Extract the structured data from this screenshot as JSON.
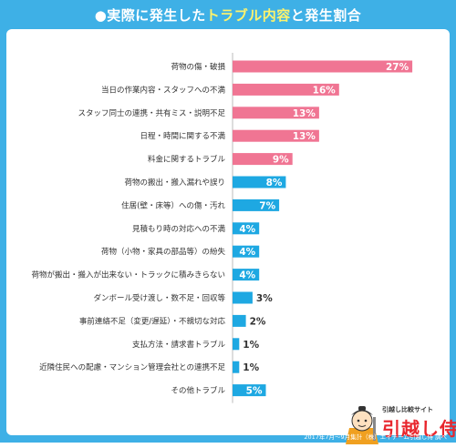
{
  "title": {
    "part1": "●実際に発生した",
    "highlight": "トラブル内容",
    "part2": "と発生割合"
  },
  "footer": "2017年7月～9月集計（株）エイチーム引越し侍 調べ",
  "logo": {
    "subtitle": "引越し比較サイト",
    "name": "引越し侍"
  },
  "colors": {
    "frame": "#3eb0e6",
    "top_bars": "#f07593",
    "other_bars": "#1ea8e2",
    "title_highlight": "#fff36b"
  },
  "chart_data": {
    "type": "bar",
    "orientation": "horizontal",
    "categories": [
      "荷物の傷・破損",
      "当日の作業内容・スタッフへの不満",
      "スタッフ同士の連携・共有ミス・説明不足",
      "日程・時間に関する不満",
      "料金に関するトラブル",
      "荷物の搬出・搬入漏れや誤り",
      "住居(壁・床等）への傷・汚れ",
      "見積もり時の対応への不満",
      "荷物（小物・家具の部品等）の紛失",
      "荷物が搬出・搬入が出来ない・トラックに積みきらない",
      "ダンボール受け渡し・数不足・回収等",
      "事前連絡不足（変更/遅延）・不親切な対応",
      "支払方法・請求書トラブル",
      "近隣住民への配慮・マンション管理会社との連携不足",
      "その他トラブル"
    ],
    "values": [
      27,
      16,
      13,
      13,
      9,
      8,
      7,
      4,
      4,
      4,
      3,
      2,
      1,
      1,
      5
    ],
    "labels": [
      "27%",
      "16%",
      "13%",
      "13%",
      "9%",
      "8%",
      "7%",
      "4%",
      "4%",
      "4%",
      "3%",
      "2%",
      "1%",
      "1%",
      "5%"
    ],
    "unit": "%",
    "pink_count": 5,
    "xlim": [
      0,
      30
    ],
    "grid": false,
    "legend": "none"
  }
}
